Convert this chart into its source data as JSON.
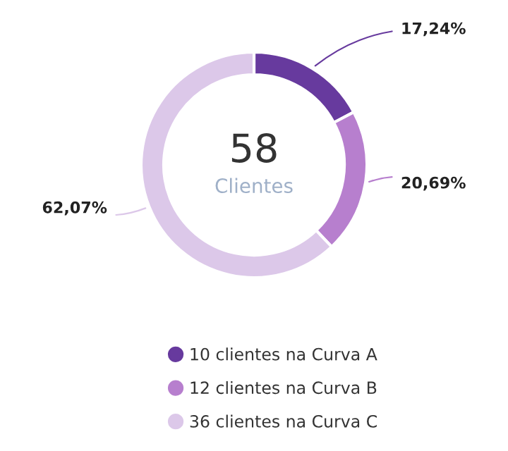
{
  "chart_data": {
    "type": "donut",
    "categories": [
      "10 clientes na Curva A",
      "12 clientes na Curva B",
      "36 clientes na Curva C"
    ],
    "values": [
      17.24,
      20.69,
      62.07
    ],
    "colors": [
      "#673a9e",
      "#b77fce",
      "#dcc8e9"
    ],
    "value_labels": [
      "17,24%",
      "20,69%",
      "62,07%"
    ],
    "annotations": [
      "58",
      "Clientes"
    ],
    "legend": "bottom"
  }
}
